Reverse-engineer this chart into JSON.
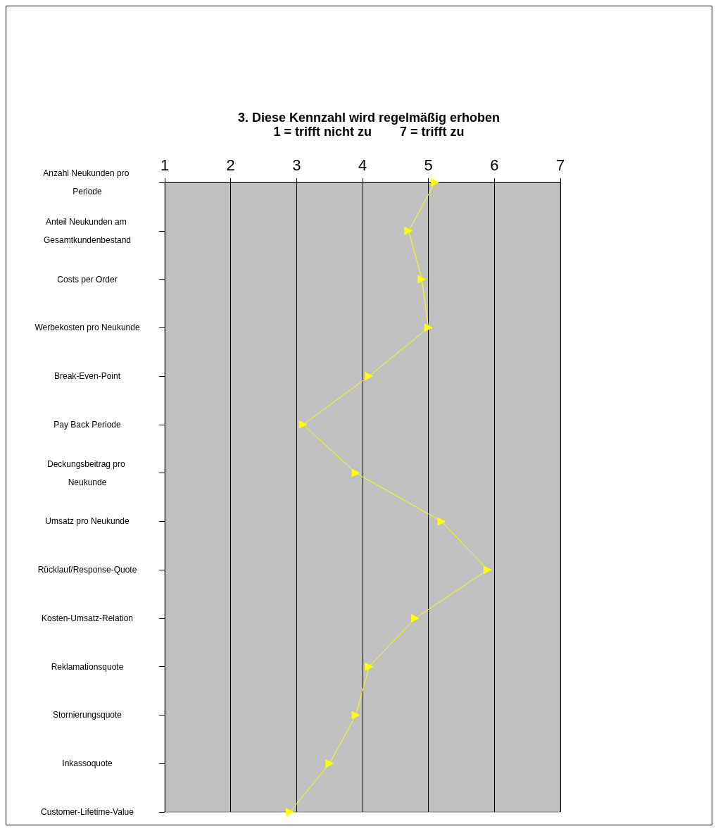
{
  "chart_data": {
    "type": "line",
    "orientation": "horizontal",
    "title": "3. Diese Kennzahl wird regelmäßig erhoben",
    "subtitle": "1 = trifft nicht zu        7 = trifft zu",
    "categories": [
      "Anzahl Neukunden pro Periode",
      "Anteil Neukunden am Gesamtkundenbestand",
      "Costs per Order",
      "Werbekosten pro Neukunde",
      "Break-Even-Point",
      "Pay Back Periode",
      "Deckungsbeitrag pro Neukunde",
      "Umsatz pro Neukunde",
      "Rücklauf/Response-Quote",
      "Kosten-Umsatz-Relation",
      "Reklamationsquote",
      "Stornierungsquote",
      "Inkassoquote",
      "Customer-Lifetime-Value"
    ],
    "series": [
      {
        "color": "#ffff00",
        "values": [
          5.1,
          4.7,
          4.9,
          5.0,
          4.1,
          3.1,
          3.9,
          5.2,
          5.9,
          4.8,
          4.1,
          3.9,
          3.5,
          2.9
        ]
      }
    ],
    "xlim": [
      1,
      7
    ],
    "xticks": [
      1,
      2,
      3,
      4,
      5,
      6,
      7
    ],
    "grid": "x",
    "marker": "triangle",
    "line_style": "solid"
  }
}
